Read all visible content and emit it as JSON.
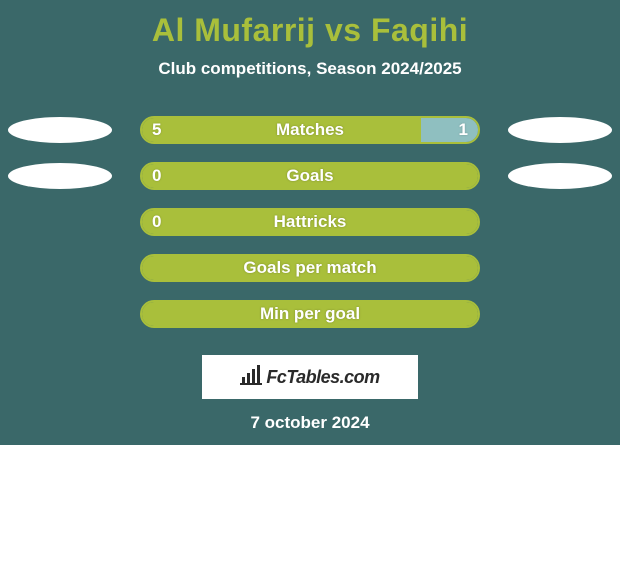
{
  "card": {
    "background_color": "#3a6869",
    "text_color": "#ffffff",
    "title": "Al Mufarrij vs Faqihi",
    "title_color": "#a9bf3b",
    "subtitle": "Club competitions, Season 2024/2025",
    "date": "7 october 2024"
  },
  "chart": {
    "type": "horizontal-comparison-bars",
    "bar_border_color": "#a9bf3b",
    "bar_fill_left_color": "#a9bf3b",
    "bar_fill_right_color": "#8fbfc0",
    "bar_label_color": "#ffffff",
    "ellipse_color": "#ffffff",
    "rows": [
      {
        "label": "Matches",
        "left_value": "5",
        "right_value": "1",
        "left_pct": 83,
        "right_pct": 17,
        "show_left_ellipse": true,
        "show_right_ellipse": true,
        "show_left_value": true,
        "show_right_value": true
      },
      {
        "label": "Goals",
        "left_value": "0",
        "right_value": "",
        "left_pct": 100,
        "right_pct": 0,
        "show_left_ellipse": true,
        "show_right_ellipse": true,
        "show_left_value": true,
        "show_right_value": false
      },
      {
        "label": "Hattricks",
        "left_value": "0",
        "right_value": "",
        "left_pct": 100,
        "right_pct": 0,
        "show_left_ellipse": false,
        "show_right_ellipse": false,
        "show_left_value": true,
        "show_right_value": false
      },
      {
        "label": "Goals per match",
        "left_value": "",
        "right_value": "",
        "left_pct": 100,
        "right_pct": 0,
        "show_left_ellipse": false,
        "show_right_ellipse": false,
        "show_left_value": false,
        "show_right_value": false
      },
      {
        "label": "Min per goal",
        "left_value": "",
        "right_value": "",
        "left_pct": 100,
        "right_pct": 0,
        "show_left_ellipse": false,
        "show_right_ellipse": false,
        "show_left_value": false,
        "show_right_value": false
      }
    ]
  },
  "logo": {
    "text": "FcTables.com",
    "icon_name": "bar-chart-icon"
  }
}
